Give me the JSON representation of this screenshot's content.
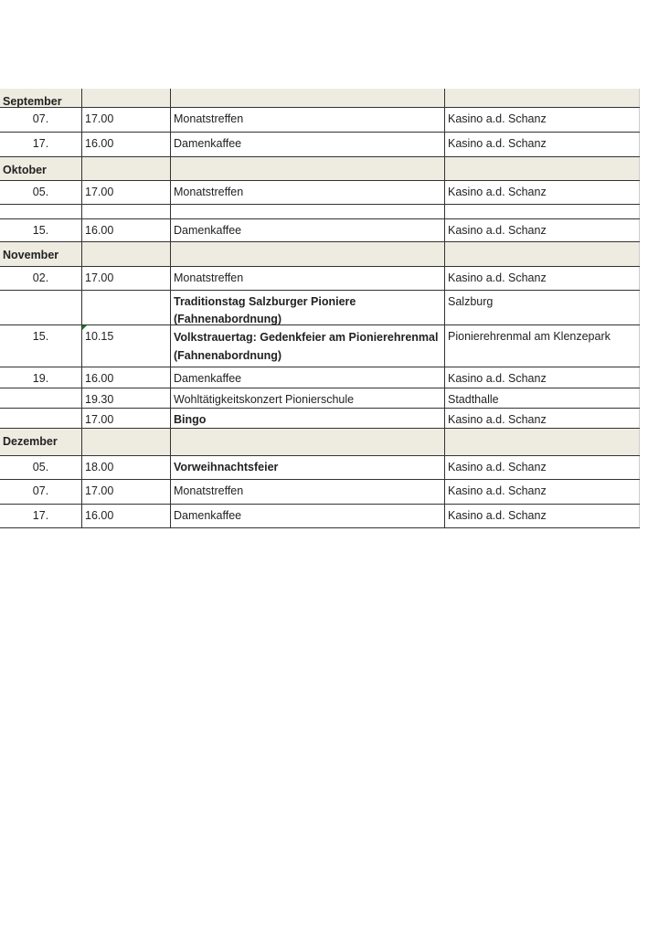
{
  "rows": [
    {
      "type": "month",
      "day": "September",
      "time": "",
      "event": "",
      "location": ""
    },
    {
      "type": "entry",
      "day": "07.",
      "time": "17.00",
      "event": "Monatstreffen",
      "location": "Kasino a.d. Schanz"
    },
    {
      "type": "entry",
      "day": "17.",
      "time": "16.00",
      "event": "Damenkaffee",
      "location": "Kasino a.d. Schanz"
    },
    {
      "type": "month",
      "day": "Oktober",
      "time": "",
      "event": "",
      "location": ""
    },
    {
      "type": "entry",
      "day": "05.",
      "time": "17.00",
      "event": "Monatstreffen",
      "location": "Kasino a.d. Schanz"
    },
    {
      "type": "entry",
      "day": "",
      "time": "",
      "event": "",
      "location": ""
    },
    {
      "type": "entry",
      "day": "15.",
      "time": "16.00",
      "event": "Damenkaffee",
      "location": "Kasino a.d. Schanz"
    },
    {
      "type": "month",
      "day": "November",
      "time": "",
      "event": "",
      "location": ""
    },
    {
      "type": "entry",
      "day": "02.",
      "time": "17.00",
      "event": "Monatstreffen",
      "location": "Kasino a.d. Schanz"
    },
    {
      "type": "entry",
      "day": "",
      "time": "",
      "event": "Traditionstag Salzburger Pioniere (Fahnenabordnung)",
      "location": "Salzburg",
      "bold": true
    },
    {
      "type": "entry",
      "day": "15.",
      "time": "10.15",
      "event": "Volkstrauertag: Gedenkfeier am Pionierehrenmal    (Fahnenabordnung)",
      "location": "Pionierehrenmal am Klenzepark",
      "bold": true
    },
    {
      "type": "entry",
      "day": "19.",
      "time": "16.00",
      "event": "Damenkaffee",
      "location": "Kasino a.d. Schanz"
    },
    {
      "type": "entry",
      "day": "",
      "time": "19.30",
      "event": "Wohltätigkeitskonzert Pionierschule",
      "location": "Stadthalle"
    },
    {
      "type": "entry",
      "day": "",
      "time": "17.00",
      "event": "Bingo",
      "location": "Kasino a.d. Schanz",
      "bold": true
    },
    {
      "type": "month",
      "day": "Dezember",
      "time": "",
      "event": "",
      "location": ""
    },
    {
      "type": "entry",
      "day": "05.",
      "time": "18.00",
      "event": "Vorweihnachtsfeier",
      "location": "Kasino a.d. Schanz",
      "bold": true
    },
    {
      "type": "entry",
      "day": "07.",
      "time": "17.00",
      "event": "Monatstreffen",
      "location": "Kasino a.d. Schanz"
    },
    {
      "type": "entry",
      "day": "17.",
      "time": "16.00",
      "event": "Damenkaffee",
      "location": "Kasino a.d. Schanz"
    }
  ],
  "colors": {
    "month_fill": "#eeece1",
    "grid": "#333333"
  }
}
